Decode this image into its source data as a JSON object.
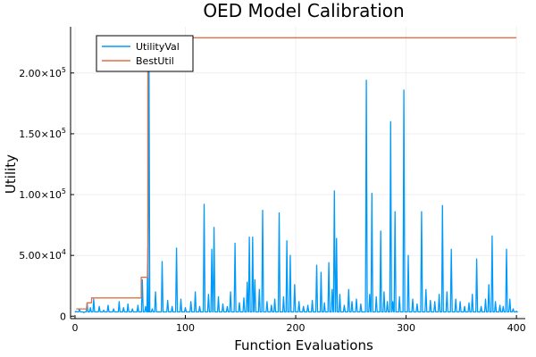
{
  "chart_data": {
    "type": "line",
    "title": "OED Model Calibration",
    "xlabel": "Function Evaluations",
    "ylabel": "Utility",
    "xlim": [
      -4,
      408
    ],
    "ylim": [
      -2000,
      238000
    ],
    "x_ticks": [
      {
        "value": 0,
        "label": "0"
      },
      {
        "value": 100,
        "label": "100"
      },
      {
        "value": 200,
        "label": "200"
      },
      {
        "value": 300,
        "label": "300"
      },
      {
        "value": 400,
        "label": "400"
      }
    ],
    "y_ticks": [
      {
        "value": 0,
        "mant": "0",
        "exp": ""
      },
      {
        "value": 50000,
        "mant": "5.00×10",
        "exp": "4"
      },
      {
        "value": 100000,
        "mant": "1.00×10",
        "exp": "5"
      },
      {
        "value": 150000,
        "mant": "1.50×10",
        "exp": "5"
      },
      {
        "value": 200000,
        "mant": "2.00×10",
        "exp": "5"
      }
    ],
    "grid": true,
    "legend_position": "top-left",
    "series": [
      {
        "name": "UtilityVal",
        "color": "#009AFA",
        "spikes": [
          [
            1,
            4000
          ],
          [
            4,
            6000
          ],
          [
            8,
            3000
          ],
          [
            11,
            11000
          ],
          [
            14,
            7000
          ],
          [
            17,
            14000
          ],
          [
            22,
            8000
          ],
          [
            26,
            5000
          ],
          [
            30,
            9000
          ],
          [
            35,
            6000
          ],
          [
            40,
            12000
          ],
          [
            44,
            7000
          ],
          [
            48,
            10000
          ],
          [
            52,
            6000
          ],
          [
            57,
            9000
          ],
          [
            61,
            30000
          ],
          [
            64,
            8000
          ],
          [
            66,
            56000
          ],
          [
            67,
            230000
          ],
          [
            70,
            6000
          ],
          [
            73,
            20000
          ],
          [
            79,
            45000
          ],
          [
            84,
            13000
          ],
          [
            88,
            8000
          ],
          [
            92,
            56000
          ],
          [
            96,
            14000
          ],
          [
            100,
            7000
          ],
          [
            105,
            12000
          ],
          [
            109,
            20000
          ],
          [
            113,
            8000
          ],
          [
            117,
            92000
          ],
          [
            121,
            18000
          ],
          [
            124,
            55000
          ],
          [
            126,
            73000
          ],
          [
            130,
            16000
          ],
          [
            134,
            10000
          ],
          [
            138,
            8000
          ],
          [
            141,
            20000
          ],
          [
            145,
            60000
          ],
          [
            149,
            11000
          ],
          [
            153,
            15000
          ],
          [
            156,
            28000
          ],
          [
            158,
            65000
          ],
          [
            161,
            65000
          ],
          [
            163,
            30000
          ],
          [
            167,
            22000
          ],
          [
            170,
            87000
          ],
          [
            174,
            12000
          ],
          [
            178,
            9000
          ],
          [
            181,
            14000
          ],
          [
            185,
            85000
          ],
          [
            189,
            16000
          ],
          [
            192,
            62000
          ],
          [
            195,
            50000
          ],
          [
            199,
            26000
          ],
          [
            203,
            12000
          ],
          [
            207,
            8000
          ],
          [
            211,
            9000
          ],
          [
            215,
            13000
          ],
          [
            219,
            42000
          ],
          [
            223,
            36000
          ],
          [
            226,
            11000
          ],
          [
            230,
            44000
          ],
          [
            233,
            22000
          ],
          [
            235,
            103000
          ],
          [
            237,
            64000
          ],
          [
            240,
            18000
          ],
          [
            244,
            9000
          ],
          [
            248,
            22000
          ],
          [
            251,
            12000
          ],
          [
            255,
            14000
          ],
          [
            259,
            10000
          ],
          [
            264,
            194000
          ],
          [
            267,
            18000
          ],
          [
            269,
            101000
          ],
          [
            273,
            16000
          ],
          [
            277,
            70000
          ],
          [
            280,
            20000
          ],
          [
            283,
            12000
          ],
          [
            286,
            160000
          ],
          [
            288,
            12000
          ],
          [
            290,
            86000
          ],
          [
            294,
            16000
          ],
          [
            298,
            186000
          ],
          [
            302,
            50000
          ],
          [
            306,
            14000
          ],
          [
            310,
            10000
          ],
          [
            314,
            86000
          ],
          [
            318,
            22000
          ],
          [
            322,
            13000
          ],
          [
            326,
            12000
          ],
          [
            330,
            18000
          ],
          [
            333,
            91000
          ],
          [
            337,
            20000
          ],
          [
            341,
            55000
          ],
          [
            345,
            14000
          ],
          [
            349,
            12000
          ],
          [
            353,
            8000
          ],
          [
            357,
            11000
          ],
          [
            360,
            18000
          ],
          [
            364,
            47000
          ],
          [
            368,
            8000
          ],
          [
            372,
            14000
          ],
          [
            375,
            26000
          ],
          [
            378,
            66000
          ],
          [
            381,
            12000
          ],
          [
            385,
            9000
          ],
          [
            388,
            8000
          ],
          [
            391,
            55000
          ],
          [
            394,
            14000
          ],
          [
            397,
            6000
          ],
          [
            400,
            4000
          ]
        ]
      },
      {
        "name": "BestUtil",
        "color": "#E26F46",
        "points": [
          [
            1,
            6000
          ],
          [
            11,
            6000
          ],
          [
            11,
            11000
          ],
          [
            15,
            11000
          ],
          [
            15,
            15000
          ],
          [
            60,
            15000
          ],
          [
            60,
            32000
          ],
          [
            66,
            32000
          ],
          [
            66,
            229000
          ],
          [
            400,
            229000
          ]
        ]
      }
    ]
  }
}
